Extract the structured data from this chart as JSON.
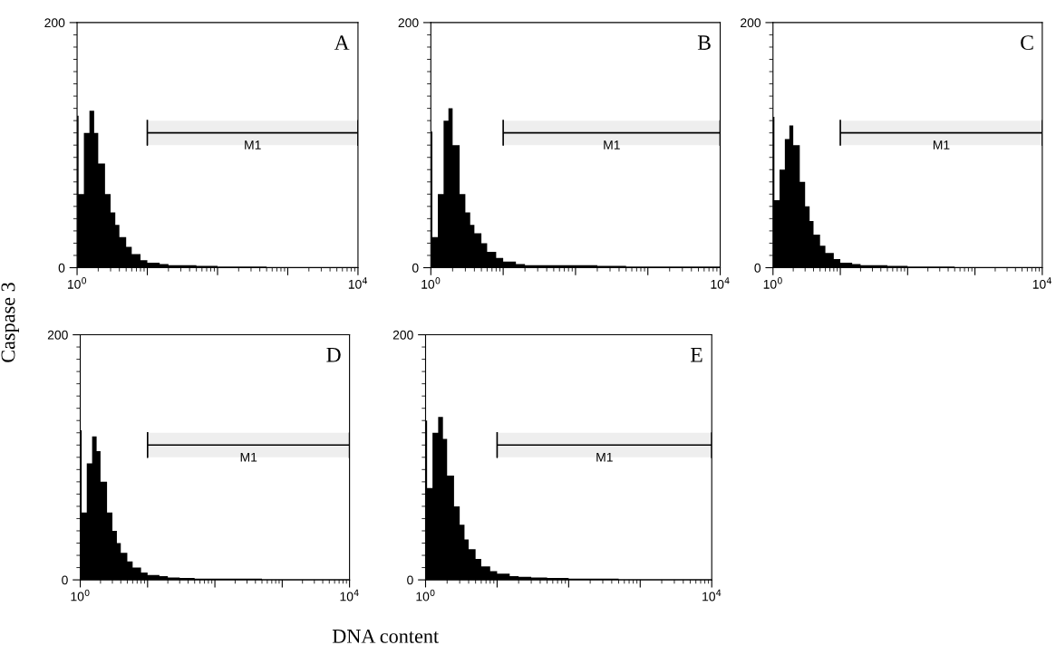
{
  "chart_data": [
    {
      "type": "histogram",
      "title": "A",
      "ylabel": "Caspase 3",
      "bins": [
        1,
        1.05,
        1.25,
        1.5,
        1.75,
        2,
        2.5,
        3,
        3.5,
        4,
        5,
        6,
        8,
        10,
        15,
        20,
        30,
        50,
        100,
        200,
        500,
        1000,
        10000
      ],
      "values": [
        124,
        60,
        110,
        128,
        110,
        85,
        60,
        45,
        35,
        25,
        17,
        11,
        6,
        4,
        3,
        2,
        2,
        1.5,
        1,
        1,
        0.5,
        0.5
      ],
      "color": "#000000",
      "log": "x",
      "xlim": [
        1,
        10000
      ],
      "ylim": [
        0,
        200
      ],
      "xticks": [
        {
          "value": 1,
          "label": "10$^{0}$"
        },
        {
          "value": 10,
          "label": null
        },
        {
          "value": 100,
          "label": null
        },
        {
          "value": 1000,
          "label": null
        },
        {
          "value": 10000,
          "label": "10$^{4}$"
        }
      ],
      "yticks": [
        0,
        200
      ],
      "bands": [
        {
          "axis": "x",
          "from": 10,
          "to": 10000,
          "label": "M1"
        }
      ]
    },
    {
      "type": "histogram",
      "title": "B",
      "bins": [
        1,
        1.05,
        1.25,
        1.5,
        1.75,
        2,
        2.5,
        3,
        3.5,
        4,
        5,
        6,
        8,
        10,
        15,
        20,
        30,
        50,
        100,
        200,
        500,
        1000,
        10000
      ],
      "values": [
        111,
        25,
        60,
        120,
        130,
        100,
        60,
        45,
        35,
        28,
        20,
        13,
        8,
        5,
        3,
        2,
        2,
        2,
        2,
        1.5,
        1,
        1
      ],
      "color": "#000000",
      "log": "x",
      "xlim": [
        1,
        10000
      ],
      "ylim": [
        0,
        200
      ],
      "xticks": [
        {
          "value": 1,
          "label": "10$^{0}$"
        },
        {
          "value": 10,
          "label": null
        },
        {
          "value": 100,
          "label": null
        },
        {
          "value": 1000,
          "label": null
        },
        {
          "value": 10000,
          "label": "10$^{4}$"
        }
      ],
      "yticks": [
        0,
        200
      ],
      "bands": [
        {
          "axis": "x",
          "from": 10,
          "to": 10000,
          "label": "M1"
        }
      ]
    },
    {
      "type": "histogram",
      "title": "C",
      "bins": [
        1,
        1.05,
        1.25,
        1.5,
        1.75,
        2,
        2.5,
        3,
        3.5,
        4,
        5,
        6,
        8,
        10,
        15,
        20,
        30,
        50,
        100,
        200,
        500,
        1000,
        10000
      ],
      "values": [
        123,
        55,
        80,
        105,
        116,
        100,
        70,
        50,
        38,
        27,
        18,
        12,
        7,
        4,
        3,
        2,
        2,
        1.5,
        1,
        1,
        0.5,
        0.5
      ],
      "color": "#000000",
      "log": "x",
      "xlim": [
        1,
        10000
      ],
      "ylim": [
        0,
        200
      ],
      "xticks": [
        {
          "value": 1,
          "label": "10$^{0}$"
        },
        {
          "value": 10,
          "label": null
        },
        {
          "value": 100,
          "label": null
        },
        {
          "value": 1000,
          "label": null
        },
        {
          "value": 10000,
          "label": "10$^{4}$"
        }
      ],
      "yticks": [
        0,
        200
      ],
      "bands": [
        {
          "axis": "x",
          "from": 10,
          "to": 10000,
          "label": "M1"
        }
      ]
    },
    {
      "type": "histogram",
      "title": "D",
      "bins": [
        1,
        1.05,
        1.25,
        1.5,
        1.75,
        2,
        2.5,
        3,
        3.5,
        4,
        5,
        6,
        8,
        10,
        15,
        20,
        30,
        50,
        100,
        200,
        500,
        1000,
        10000
      ],
      "values": [
        122,
        55,
        95,
        117,
        105,
        80,
        55,
        40,
        30,
        22,
        15,
        10,
        6,
        4,
        3,
        2,
        1.5,
        1,
        1,
        1,
        0.5,
        0.5
      ],
      "color": "#000000",
      "log": "x",
      "xlim": [
        1,
        10000
      ],
      "ylim": [
        0,
        200
      ],
      "xticks": [
        {
          "value": 1,
          "label": "10$^{0}$"
        },
        {
          "value": 10,
          "label": null
        },
        {
          "value": 100,
          "label": null
        },
        {
          "value": 1000,
          "label": null
        },
        {
          "value": 10000,
          "label": "10$^{4}$"
        }
      ],
      "yticks": [
        0,
        200
      ],
      "bands": [
        {
          "axis": "x",
          "from": 10,
          "to": 10000,
          "label": "M1"
        }
      ]
    },
    {
      "type": "histogram",
      "title": "E",
      "bins": [
        1,
        1.05,
        1.25,
        1.5,
        1.75,
        2,
        2.5,
        3,
        3.5,
        4,
        5,
        6,
        8,
        10,
        15,
        20,
        30,
        50,
        100,
        200,
        500,
        1000,
        10000
      ],
      "values": [
        130,
        75,
        120,
        133,
        115,
        85,
        60,
        45,
        33,
        25,
        17,
        11,
        7,
        5,
        3,
        2.5,
        2,
        1.5,
        1,
        1,
        0.5,
        0.5
      ],
      "color": "#000000",
      "log": "x",
      "xlim": [
        1,
        10000
      ],
      "ylim": [
        0,
        200
      ],
      "xticks": [
        {
          "value": 1,
          "label": "10$^{0}$"
        },
        {
          "value": 10,
          "label": null
        },
        {
          "value": 100,
          "label": null
        },
        {
          "value": 1000,
          "label": null
        },
        {
          "value": 10000,
          "label": "10$^{4}$"
        }
      ],
      "yticks": [
        0,
        200
      ],
      "bands": [
        {
          "axis": "x",
          "from": 10,
          "to": 10000,
          "label": "M1"
        }
      ],
      "xlabel": "DNA content"
    }
  ]
}
